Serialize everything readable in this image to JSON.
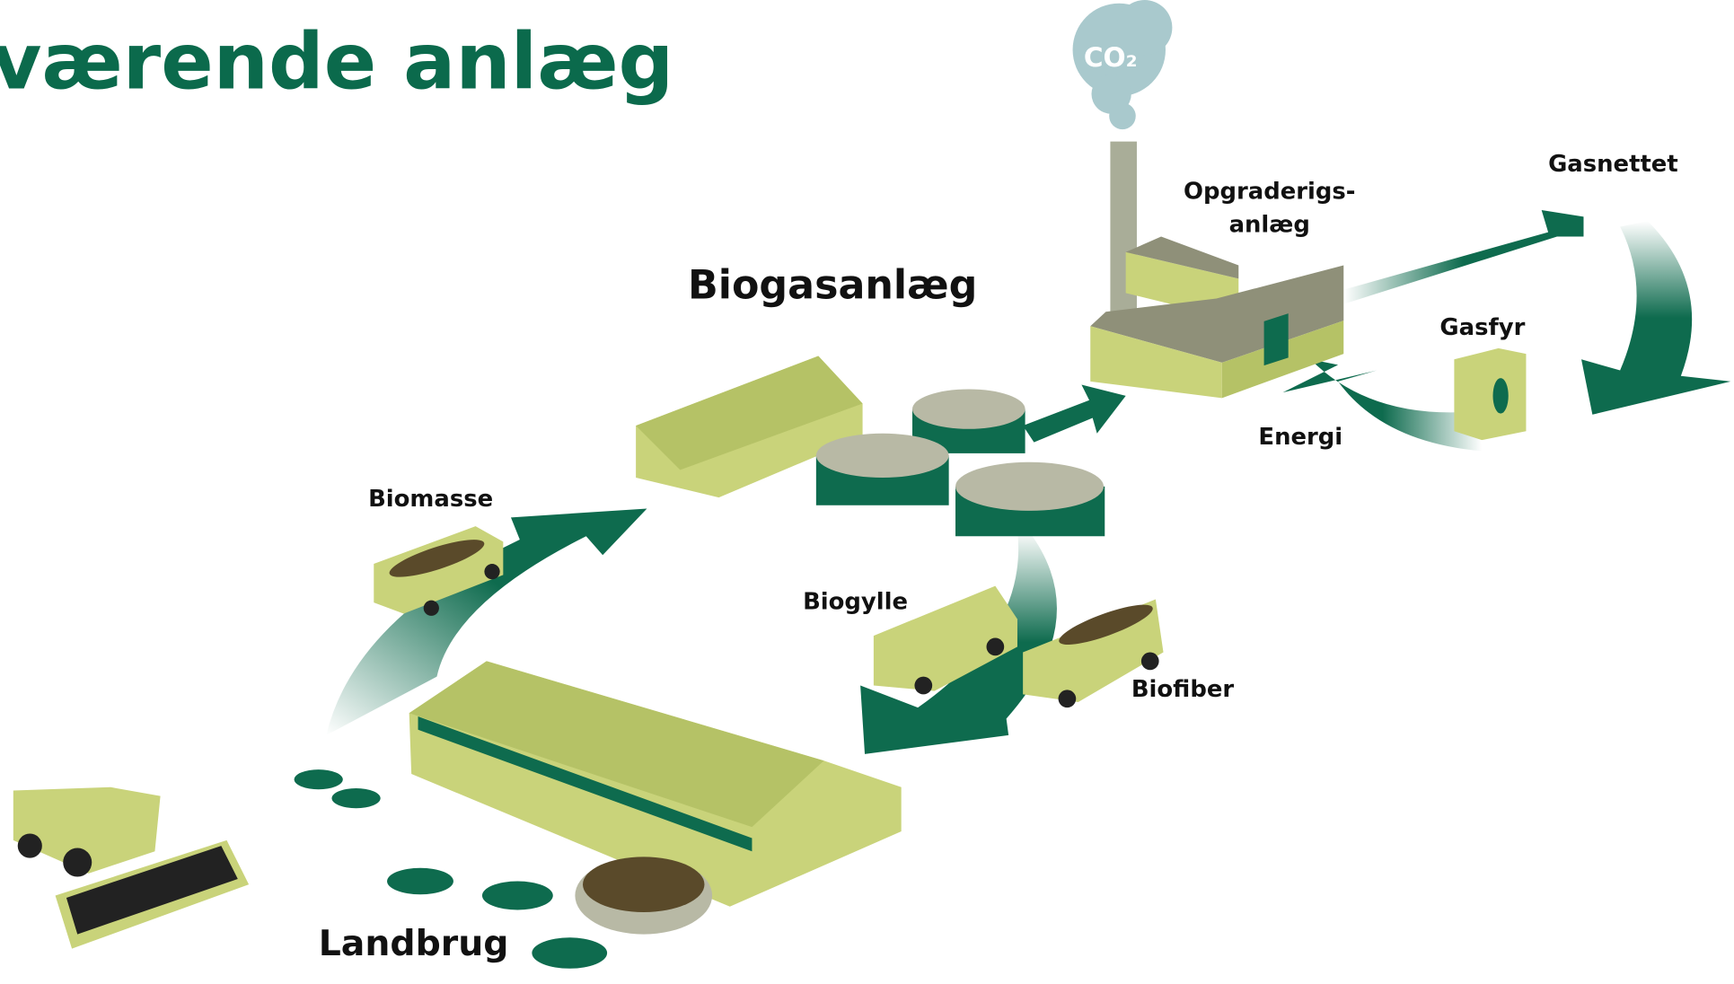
{
  "header": {
    "title": "værende anlæg"
  },
  "labels": {
    "co2": "CO₂",
    "biogas": "Biogasanlæg",
    "upgrade": [
      "Opgraderigs-",
      "anlæg"
    ],
    "gasnet": "Gasnettet",
    "gasfyr": "Gasfyr",
    "energi": "Energi",
    "biomasse": "Biomasse",
    "biogylle": "Biogylle",
    "biofiber": "Biofiber",
    "landbrug": "Landbrug"
  }
}
